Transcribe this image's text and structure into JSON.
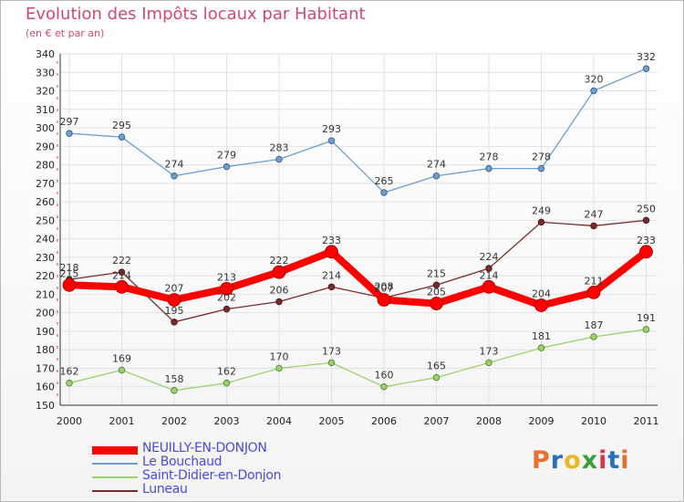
{
  "title": "Evolution des Impôts locaux par Habitant",
  "subtitle": "(en € et par an)",
  "logo": {
    "text": "Proxiti",
    "letters": [
      "P",
      "r",
      "o",
      "x",
      "i",
      "t",
      "i"
    ],
    "colors": [
      "#e8702a",
      "#2c6fb7",
      "#e8b923",
      "#3a9f3a",
      "#d2384a",
      "#2c6fb7",
      "#e8702a"
    ]
  },
  "chart_data": {
    "type": "line",
    "title": "Evolution des Impôts locaux par Habitant",
    "subtitle": "(en € et par an)",
    "xlabel": "",
    "ylabel": "",
    "x": [
      "2000",
      "2001",
      "2002",
      "2003",
      "2004",
      "2005",
      "2006",
      "2007",
      "2008",
      "2009",
      "2010",
      "2011"
    ],
    "ylim": [
      150,
      340
    ],
    "yticks": [
      "150",
      "160",
      "170",
      "180",
      "190",
      "200",
      "210",
      "220",
      "230",
      "240",
      "250",
      "260",
      "270",
      "280",
      "290",
      "300",
      "310",
      "320",
      "330",
      "340"
    ],
    "grid": true,
    "legend": "bottom-left",
    "series": [
      {
        "name": "NEUILLY-EN-DONJON",
        "color": "#ff0000",
        "values": [
          215,
          214,
          207,
          213,
          222,
          233,
          207,
          205,
          214,
          204,
          211,
          233
        ],
        "labels": [
          "215",
          "214",
          "207",
          "213",
          "222",
          "233",
          "207",
          "205",
          "214",
          "204",
          "211",
          "233"
        ],
        "emphasis": true
      },
      {
        "name": "Le Bouchaud",
        "color": "#6a9fd4",
        "values": [
          297,
          295,
          274,
          279,
          283,
          293,
          265,
          274,
          278,
          278,
          320,
          332
        ],
        "labels": [
          "297",
          "295",
          "274",
          "279",
          "283",
          "293",
          "265",
          "274",
          "278",
          "278",
          "320",
          "332"
        ]
      },
      {
        "name": "Saint-Didier-en-Donjon",
        "color": "#9ad36a",
        "values": [
          162,
          169,
          158,
          162,
          170,
          173,
          160,
          165,
          173,
          181,
          187,
          191
        ],
        "labels": [
          "162",
          "169",
          "158",
          "162",
          "170",
          "173",
          "160",
          "165",
          "173",
          "181",
          "187",
          "191"
        ]
      },
      {
        "name": "Luneau",
        "color": "#7a2a2a",
        "values": [
          218,
          222,
          195,
          202,
          206,
          214,
          208,
          215,
          224,
          249,
          247,
          250
        ],
        "labels": [
          "218",
          "222",
          "195",
          "202",
          "206",
          "214",
          "208",
          "215",
          "224",
          "249",
          "247",
          "250"
        ]
      }
    ]
  }
}
